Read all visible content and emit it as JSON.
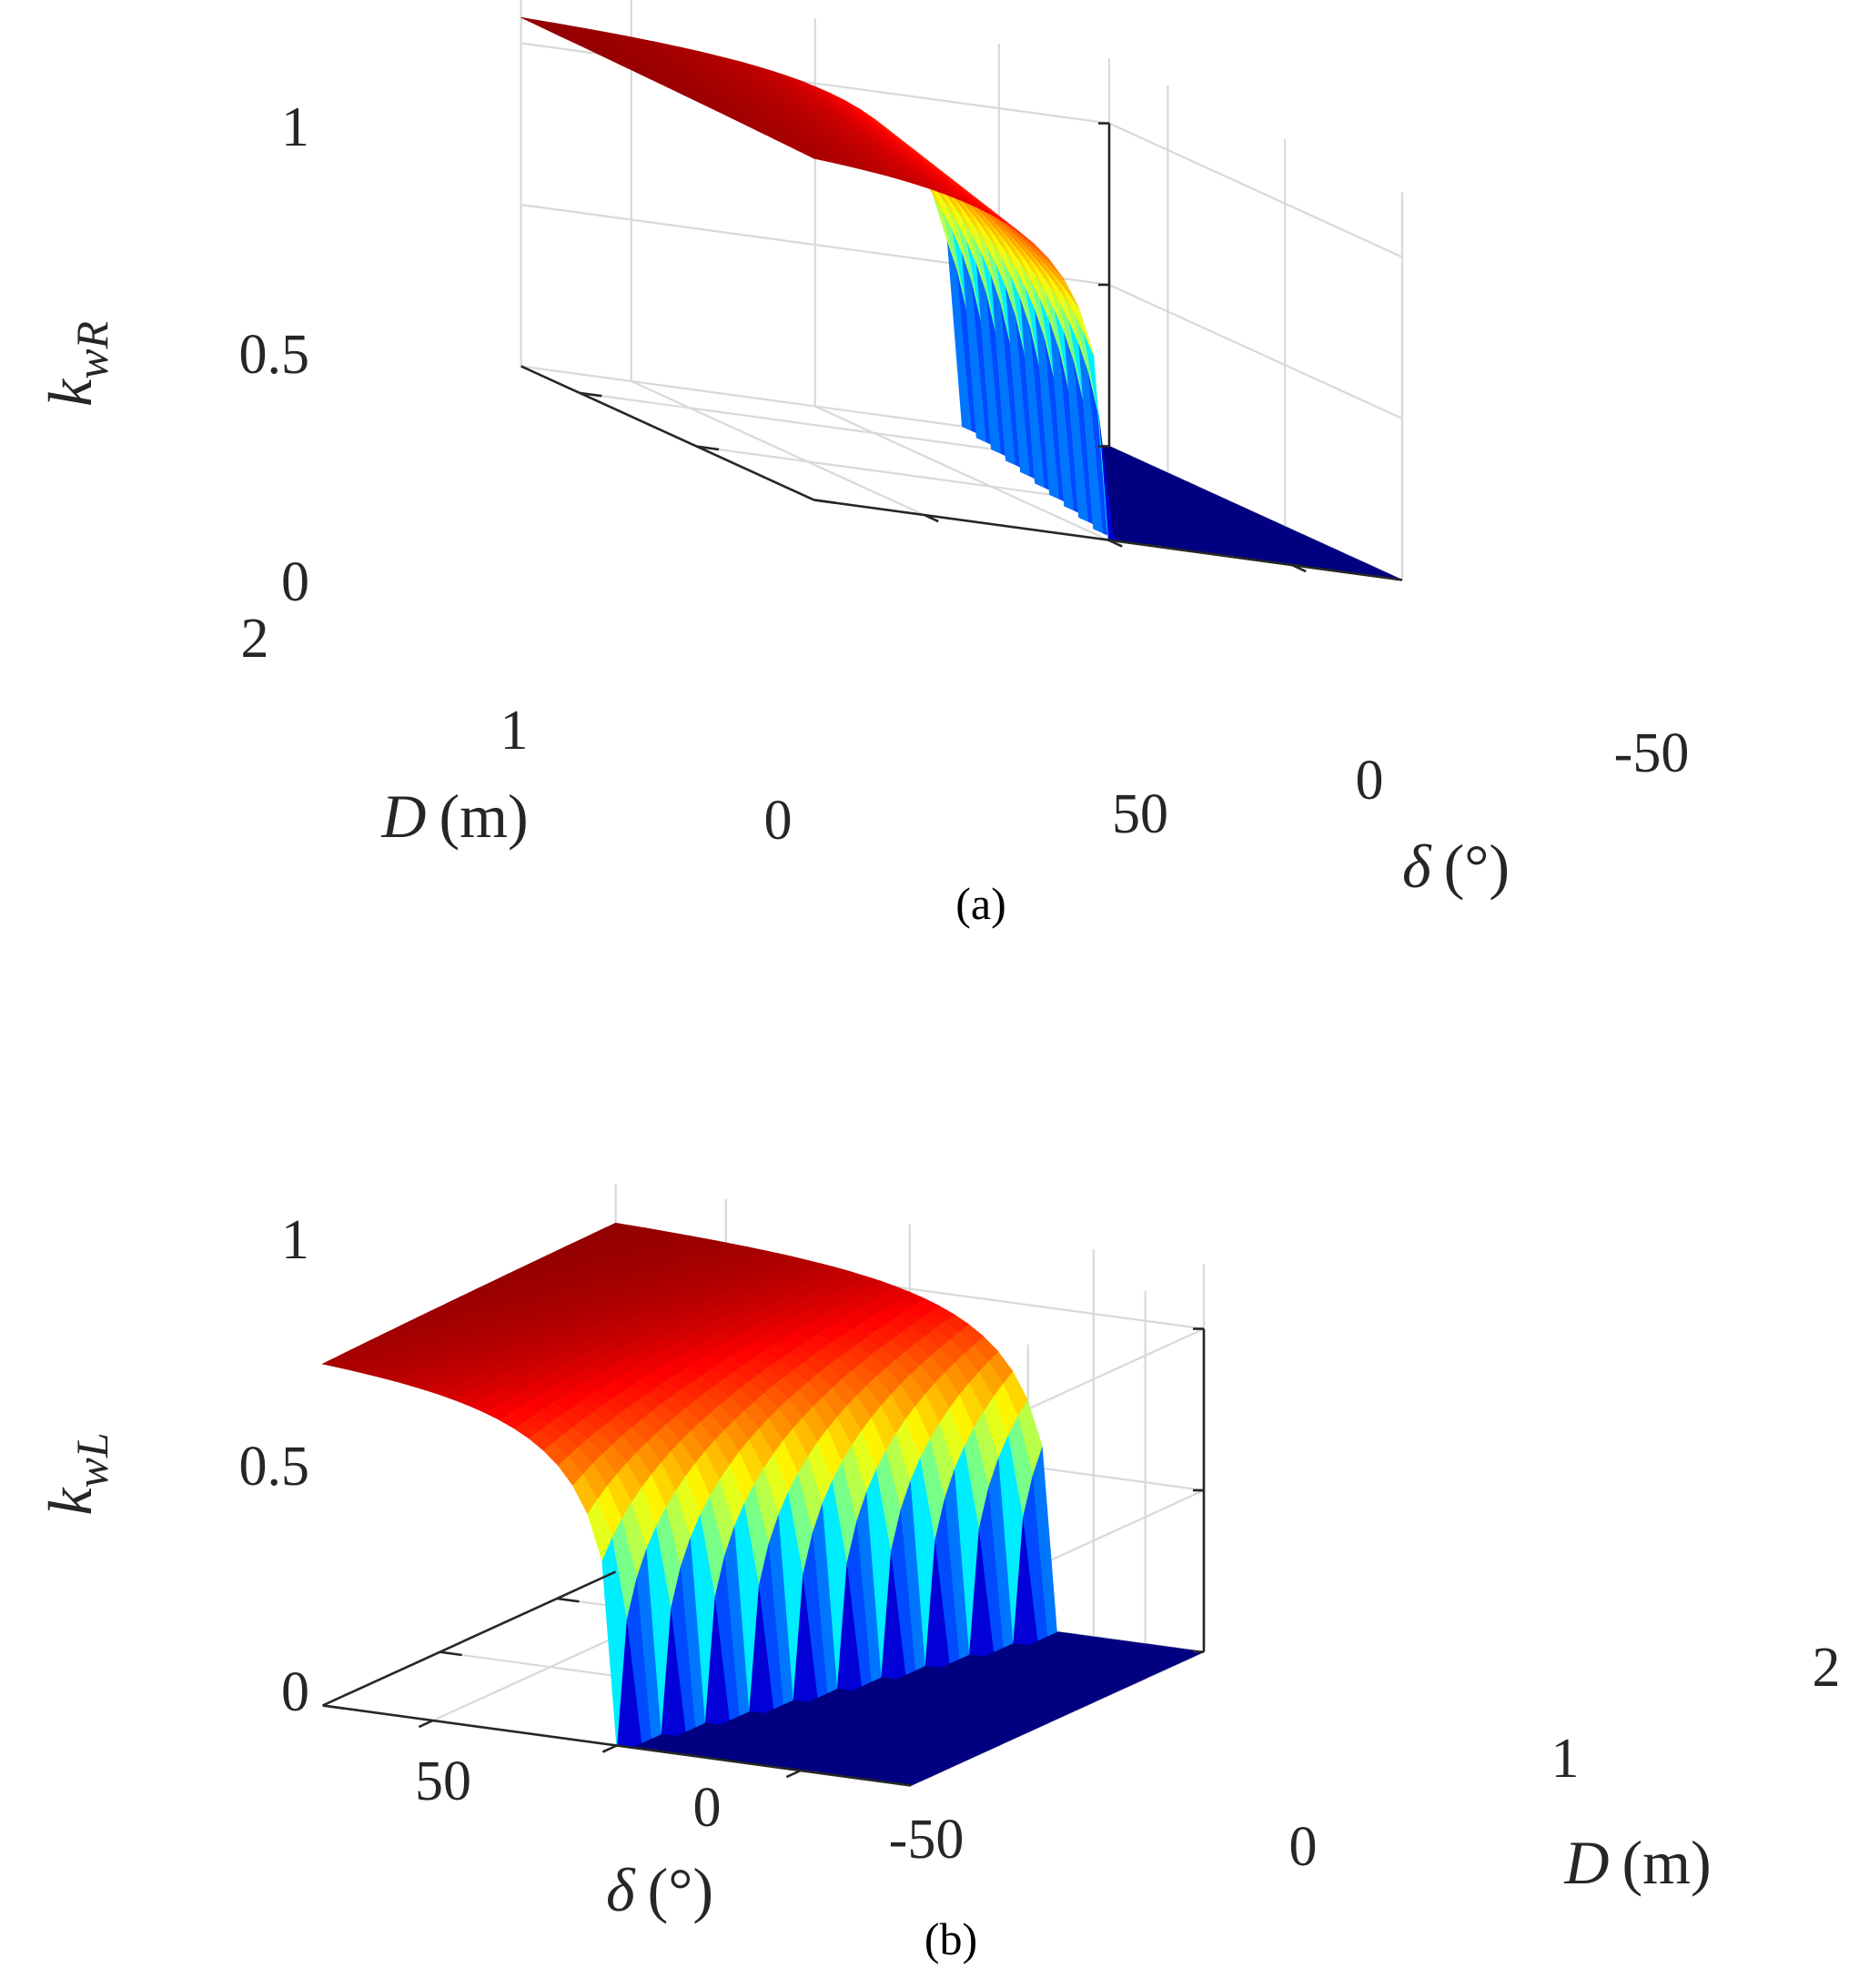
{
  "figure": {
    "panels": [
      "(a)",
      "(b)"
    ]
  },
  "chart_data": [
    {
      "type": "surface",
      "panel_label": "(a)",
      "zlabel": {
        "main": "k",
        "sub": "wR"
      },
      "xlabel": {
        "symbol": "D",
        "unit": "(m)"
      },
      "ylabel": {
        "symbol": "δ",
        "unit": "(°)"
      },
      "x_range": [
        0,
        2.5
      ],
      "y_range": [
        -80,
        80
      ],
      "z_range": [
        0,
        1
      ],
      "x_ticks": [
        "0",
        "1",
        "2"
      ],
      "y_ticks": [
        "50",
        "0",
        "-50"
      ],
      "z_ticks": [
        "0",
        "0.5",
        "1"
      ],
      "colormap": "jet",
      "grid": true,
      "description_of_surface": "k = 0 for δ below a D-dependent threshold (zero at D=0, about -40° at D=2.5); rises steeply then saturates near 1.1 at small D; at D=2.5 the value at δ=-80 is about 0.55"
    },
    {
      "type": "surface",
      "panel_label": "(b)",
      "zlabel": {
        "main": "k",
        "sub": "wL"
      },
      "xlabel": {
        "symbol": "D",
        "unit": "(m)"
      },
      "ylabel": {
        "symbol": "δ",
        "unit": "(°)"
      },
      "x_range": [
        0,
        2.5
      ],
      "y_range": [
        -80,
        80
      ],
      "z_range": [
        0,
        1
      ],
      "x_ticks": [
        "0",
        "1",
        "2"
      ],
      "y_ticks": [
        "50",
        "0",
        "-50"
      ],
      "z_ticks": [
        "0",
        "0.5",
        "1"
      ],
      "colormap": "jet",
      "grid": true,
      "description_of_surface": "mirror of (a): k = 0 for δ above a D-dependent threshold; saturates near 1.1; at D=2.5 the value at δ=80 is about 0.55"
    }
  ]
}
